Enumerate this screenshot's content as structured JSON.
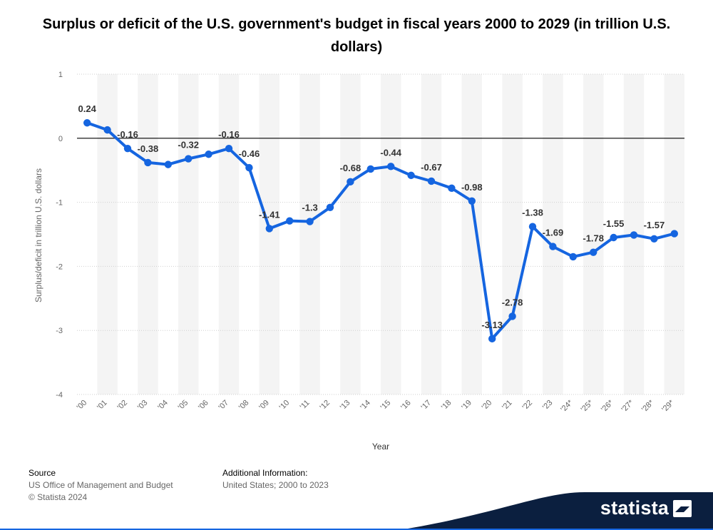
{
  "title": "Surplus or deficit of the U.S. government's budget in fiscal years 2000 to 2029 (in trillion U.S. dollars)",
  "colors": {
    "line": "#1565e0",
    "band": "#f4f4f4",
    "grid": "#cfcfcf",
    "zero_line": "#000000",
    "brand_bg": "#0b1f3f",
    "axis_text": "#666666"
  },
  "chart_data": {
    "type": "line",
    "title": "Surplus or deficit of the U.S. government's budget in fiscal years 2000 to 2029 (in trillion U.S. dollars)",
    "xlabel": "Year",
    "ylabel": "Surplus/deficit in trillion U.S. dollars",
    "ylim": [
      -4,
      1
    ],
    "yticks": [
      1,
      0,
      -1,
      -2,
      -3,
      -4
    ],
    "categories": [
      "'00",
      "'01",
      "'02",
      "'03",
      "'04",
      "'05",
      "'06",
      "'07",
      "'08",
      "'09",
      "'10",
      "'11",
      "'12",
      "'13",
      "'14",
      "'15",
      "'16",
      "'17",
      "'18",
      "'19",
      "'20",
      "'21",
      "'22",
      "'23",
      "'24*",
      "'25*",
      "'26*",
      "'27*",
      "'28*",
      "'29*"
    ],
    "series": [
      {
        "name": "Surplus/deficit",
        "values": [
          0.24,
          0.13,
          -0.16,
          -0.38,
          -0.41,
          -0.32,
          -0.25,
          -0.16,
          -0.46,
          -1.41,
          -1.29,
          -1.3,
          -1.08,
          -0.68,
          -0.48,
          -0.44,
          -0.58,
          -0.67,
          -0.78,
          -0.98,
          -3.13,
          -2.78,
          -1.38,
          -1.69,
          -1.85,
          -1.78,
          -1.55,
          -1.51,
          -1.57,
          -1.49
        ]
      }
    ],
    "data_labels": [
      {
        "index": 0,
        "text": "0.24"
      },
      {
        "index": 2,
        "text": "-0.16"
      },
      {
        "index": 3,
        "text": "-0.38"
      },
      {
        "index": 5,
        "text": "-0.32"
      },
      {
        "index": 7,
        "text": "-0.16"
      },
      {
        "index": 8,
        "text": "-0.46"
      },
      {
        "index": 9,
        "text": "-1.41"
      },
      {
        "index": 11,
        "text": "-1.3"
      },
      {
        "index": 13,
        "text": "-0.68"
      },
      {
        "index": 15,
        "text": "-0.44"
      },
      {
        "index": 17,
        "text": "-0.67"
      },
      {
        "index": 19,
        "text": "-0.98"
      },
      {
        "index": 20,
        "text": "-3.13"
      },
      {
        "index": 21,
        "text": "-2.78"
      },
      {
        "index": 22,
        "text": "-1.38"
      },
      {
        "index": 23,
        "text": "-1.69"
      },
      {
        "index": 25,
        "text": "-1.78"
      },
      {
        "index": 26,
        "text": "-1.55"
      },
      {
        "index": 28,
        "text": "-1.57"
      }
    ],
    "grid": true,
    "legend": "none"
  },
  "footer": {
    "source_label": "Source",
    "source_lines": [
      "US Office of Management and Budget",
      "© Statista 2024"
    ],
    "additional_label": "Additional Information:",
    "additional_text": "United States; 2000 to 2023"
  },
  "brand": {
    "name": "statista",
    "icon": "statista-logo-icon"
  }
}
